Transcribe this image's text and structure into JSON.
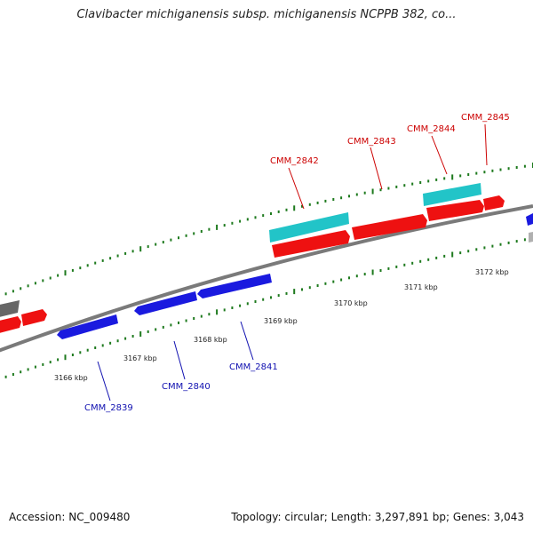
{
  "title": "Clavibacter michiganensis subsp. michiganensis NCPPB 382, co...",
  "footer": {
    "accession": "Accession: NC_009480",
    "summary": "Topology: circular; Length: 3,297,891 bp; Genes: 3,043"
  },
  "colors": {
    "forward_gene": "#ee1111",
    "reverse_gene": "#1a1adf",
    "rna_feature": "#22c4c8",
    "backbone": "#808080",
    "tick": "#1e7a1e",
    "forward_label": "#cc0000",
    "reverse_label": "#1010b0"
  },
  "tick_labels": [
    "3166 kbp",
    "3167 kbp",
    "3168 kbp",
    "3169 kbp",
    "3170 kbp",
    "3171 kbp",
    "3172 kbp"
  ],
  "gene_labels": {
    "forward": [
      "CMM_2842",
      "CMM_2843",
      "CMM_2844",
      "CMM_2845"
    ],
    "reverse": [
      "CMM_2839",
      "CMM_2840",
      "CMM_2841"
    ]
  }
}
